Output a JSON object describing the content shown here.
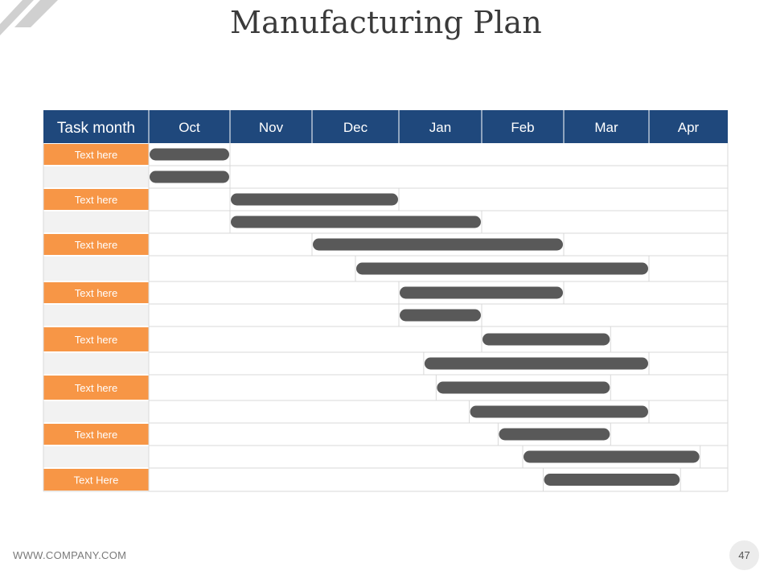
{
  "slide": {
    "title": "Manufacturing Plan",
    "footer_url": "WWW.COMPANY.COM",
    "page_number": "47"
  },
  "colors": {
    "header_bg": "#1f487c",
    "header_text": "#ffffff",
    "task_label_bg": "#f79646",
    "task_label_text": "#ffffff",
    "blank_label_bg": "#f2f2f2",
    "bar": "#595959",
    "grid": "#d9d9d9"
  },
  "chart_data": {
    "type": "table",
    "header_label": "Task month",
    "months": [
      "Oct",
      "Nov",
      "Dec",
      "Jan",
      "Feb",
      "Mar",
      "Apr"
    ],
    "rows": [
      {
        "label": "Text here",
        "start": 0.0,
        "end": 1.0
      },
      {
        "label": "",
        "start": 0.0,
        "end": 1.0
      },
      {
        "label": "Text here",
        "start": 1.0,
        "end": 3.0
      },
      {
        "label": "",
        "start": 1.0,
        "end": 4.0
      },
      {
        "label": "Text here",
        "start": 2.0,
        "end": 5.0
      },
      {
        "label": "",
        "start": 2.5,
        "end": 6.0
      },
      {
        "label": "Text here",
        "start": 3.0,
        "end": 5.0
      },
      {
        "label": "",
        "start": 3.0,
        "end": 4.0
      },
      {
        "label": "Text here",
        "start": 4.0,
        "end": 5.55
      },
      {
        "label": "",
        "start": 3.3,
        "end": 6.0
      },
      {
        "label": "Text here",
        "start": 3.45,
        "end": 5.55
      },
      {
        "label": "",
        "start": 3.85,
        "end": 6.0
      },
      {
        "label": "Text here",
        "start": 4.2,
        "end": 5.55
      },
      {
        "label": "",
        "start": 4.5,
        "end": 6.65
      },
      {
        "label": "Text Here",
        "start": 4.75,
        "end": 6.4
      }
    ]
  }
}
